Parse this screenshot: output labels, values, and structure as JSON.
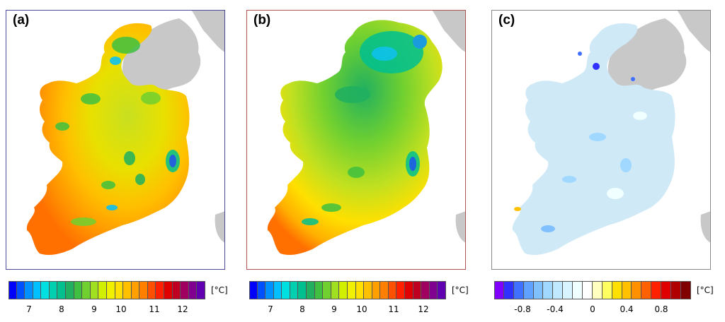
{
  "panels": [
    {
      "id": "a",
      "label": "(a)",
      "frame_color": "#4b4b9a"
    },
    {
      "id": "b",
      "label": "(b)",
      "frame_color": "#b35050"
    },
    {
      "id": "c",
      "label": "(c)",
      "frame_color": "#888888"
    }
  ],
  "colorbars": {
    "temperature": {
      "unit": "[°C]",
      "tick_labels": [
        "7",
        "8",
        "9",
        "10",
        "11",
        "12"
      ],
      "colors": [
        "#0000ff",
        "#0050ff",
        "#0090ff",
        "#00c0ff",
        "#00e0e0",
        "#00d0b0",
        "#00c090",
        "#20b060",
        "#40c040",
        "#70d030",
        "#a0e020",
        "#d0f000",
        "#f0f000",
        "#ffe000",
        "#ffc000",
        "#ffa000",
        "#ff8000",
        "#ff5000",
        "#ff2000",
        "#e00000",
        "#c00020",
        "#a00060",
        "#800090",
        "#6000b0"
      ]
    },
    "difference": {
      "unit": "[°C]",
      "tick_labels": [
        "-0.8",
        "-0.4",
        "0",
        "0.4",
        "0.8"
      ],
      "colors": [
        "#8000ff",
        "#3030ff",
        "#4070ff",
        "#60a0ff",
        "#80c0ff",
        "#a0d8ff",
        "#c0e8ff",
        "#d8f4ff",
        "#f0ffff",
        "#ffffff",
        "#ffffc0",
        "#ffff60",
        "#ffe000",
        "#ffc000",
        "#ff9000",
        "#ff6000",
        "#ff2000",
        "#e00000",
        "#b00000",
        "#800000"
      ]
    }
  },
  "colors": {
    "land_grey": "#c8c8c8",
    "panel_c_fill": "#cfe9f7"
  }
}
